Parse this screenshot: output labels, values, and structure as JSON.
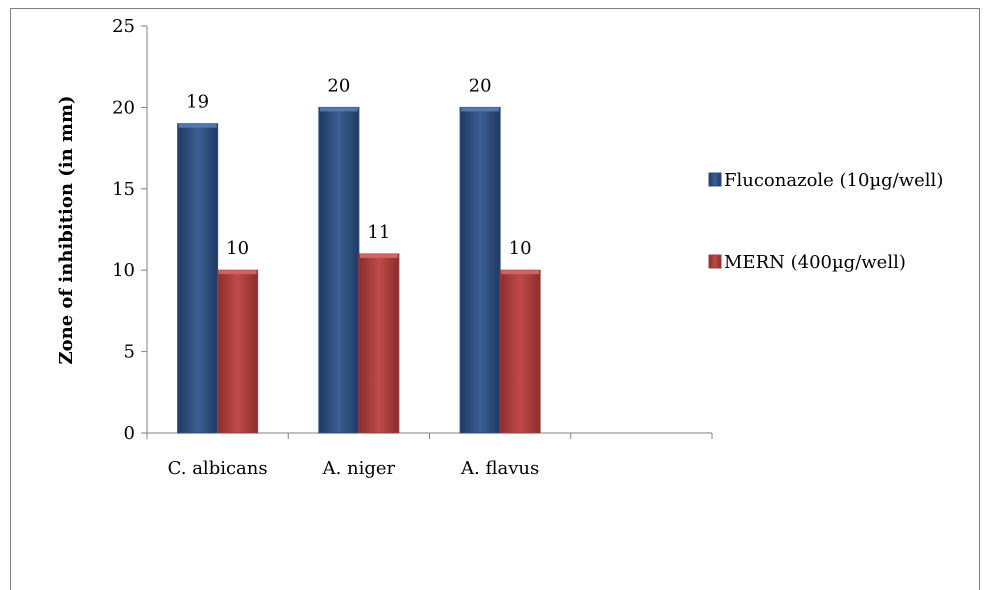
{
  "chart_data": {
    "type": "bar",
    "title": "",
    "xlabel": "",
    "ylabel": "Zone of inhibition (in mm)",
    "categories": [
      "C. albicans",
      "A. niger",
      "A. flavus",
      ""
    ],
    "series": [
      {
        "name": "Fluconazole (10µg/well)",
        "values": [
          19,
          20,
          20,
          null
        ],
        "color": "#2E4E7E",
        "highlight": "#5A7BB0"
      },
      {
        "name": "MERN (400µg/well)",
        "values": [
          10,
          11,
          10,
          null
        ],
        "color": "#A63A3A",
        "highlight": "#D06A66"
      }
    ],
    "ylim": [
      0,
      25
    ],
    "yticks": [
      0,
      5,
      10,
      15,
      20,
      25
    ],
    "grid": false,
    "legend_position": "right"
  }
}
